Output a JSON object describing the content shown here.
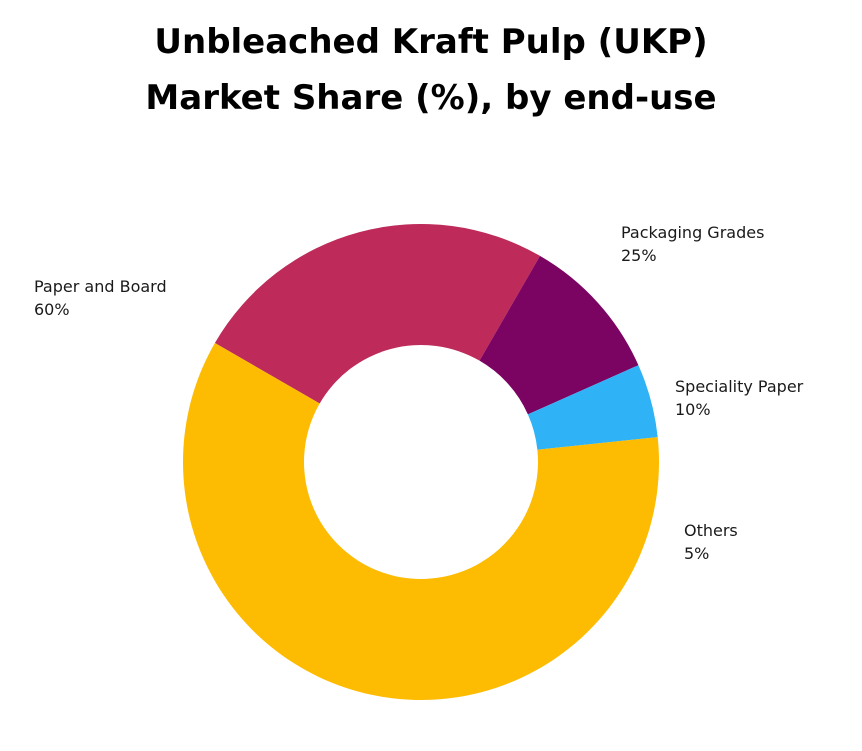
{
  "title": {
    "line1": "Unbleached Kraft Pulp (UKP)",
    "line2": "Market Share (%), by end-use"
  },
  "chart_data": {
    "type": "pie",
    "variant": "donut",
    "title": "Unbleached Kraft Pulp (UKP) Market Share (%), by end-use",
    "slices": [
      {
        "label": "Packaging Grades",
        "value": 25,
        "value_label": "25%",
        "color": "#BE2A5A"
      },
      {
        "label": "Speciality Paper",
        "value": 10,
        "value_label": "10%",
        "color": "#7B0463"
      },
      {
        "label": "Others",
        "value": 5,
        "value_label": "5%",
        "color": "#2FB3F6"
      },
      {
        "label": "Paper and Board",
        "value": 60,
        "value_label": "60%",
        "color": "#FDBB01"
      }
    ],
    "legend": "none"
  }
}
